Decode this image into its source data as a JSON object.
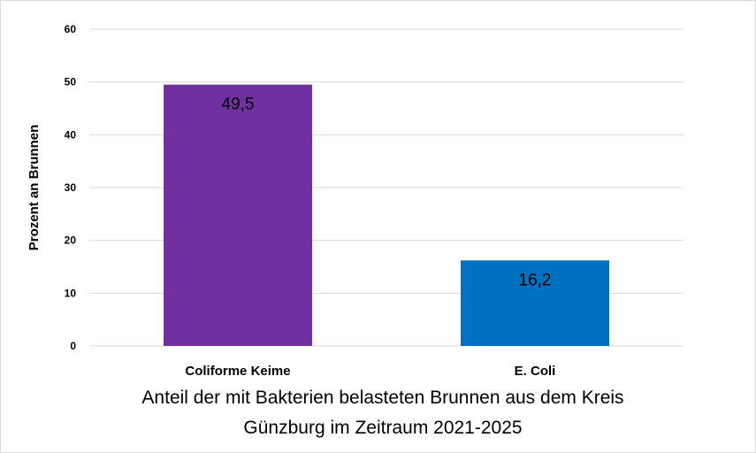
{
  "chart_data": {
    "type": "bar",
    "title": [
      "Anteil der mit Bakterien belasteten Brunnen aus dem Kreis",
      "Günzburg im Zeitraum 2021-2025"
    ],
    "xlabel": "",
    "ylabel": "Prozent an Brunnen",
    "ylim": [
      0,
      60
    ],
    "yticks": [
      0,
      10,
      20,
      30,
      40,
      50,
      60
    ],
    "grid": true,
    "categories": [
      "Coliforme Keime",
      "E. Coli"
    ],
    "values": [
      49.5,
      16.2
    ],
    "data_labels": [
      "49,5",
      "16,2"
    ],
    "colors": [
      "#7030a0",
      "#0070c0"
    ]
  }
}
